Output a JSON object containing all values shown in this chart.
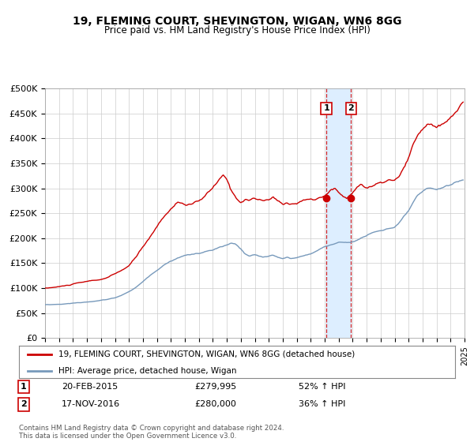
{
  "title": "19, FLEMING COURT, SHEVINGTON, WIGAN, WN6 8GG",
  "subtitle": "Price paid vs. HM Land Registry's House Price Index (HPI)",
  "x_start_year": 1995,
  "x_end_year": 2025,
  "y_ticks": [
    0,
    50000,
    100000,
    150000,
    200000,
    250000,
    300000,
    350000,
    400000,
    450000,
    500000
  ],
  "y_tick_labels": [
    "£0",
    "£50K",
    "£100K",
    "£150K",
    "£200K",
    "£250K",
    "£300K",
    "£350K",
    "£400K",
    "£450K",
    "£500K"
  ],
  "sale1_date": 2015.12,
  "sale1_price": 279995,
  "sale1_label": "1",
  "sale1_date_str": "20-FEB-2015",
  "sale1_price_str": "£279,995",
  "sale1_hpi_str": "52% ↑ HPI",
  "sale2_date": 2016.88,
  "sale2_price": 280000,
  "sale2_label": "2",
  "sale2_date_str": "17-NOV-2016",
  "sale2_price_str": "£280,000",
  "sale2_hpi_str": "36% ↑ HPI",
  "legend_line1": "19, FLEMING COURT, SHEVINGTON, WIGAN, WN6 8GG (detached house)",
  "legend_line2": "HPI: Average price, detached house, Wigan",
  "footer": "Contains HM Land Registry data © Crown copyright and database right 2024.\nThis data is licensed under the Open Government Licence v3.0.",
  "red_line_color": "#cc0000",
  "blue_line_color": "#7799bb",
  "background_color": "#ffffff",
  "shading_color": "#ddeeff",
  "red_waypoints": [
    [
      1995.0,
      100000
    ],
    [
      1995.5,
      101500
    ],
    [
      1996.0,
      103000
    ],
    [
      1996.5,
      105000
    ],
    [
      1997.0,
      108000
    ],
    [
      1997.5,
      110000
    ],
    [
      1998.0,
      112000
    ],
    [
      1998.5,
      114000
    ],
    [
      1999.0,
      116000
    ],
    [
      1999.5,
      120000
    ],
    [
      2000.0,
      126000
    ],
    [
      2000.5,
      133000
    ],
    [
      2001.0,
      142000
    ],
    [
      2001.5,
      158000
    ],
    [
      2002.0,
      178000
    ],
    [
      2002.5,
      198000
    ],
    [
      2003.0,
      218000
    ],
    [
      2003.5,
      240000
    ],
    [
      2004.0,
      255000
    ],
    [
      2004.5,
      268000
    ],
    [
      2005.0,
      265000
    ],
    [
      2005.5,
      262000
    ],
    [
      2006.0,
      268000
    ],
    [
      2006.5,
      278000
    ],
    [
      2007.0,
      292000
    ],
    [
      2007.5,
      308000
    ],
    [
      2007.75,
      313000
    ],
    [
      2008.0,
      305000
    ],
    [
      2008.3,
      285000
    ],
    [
      2008.6,
      272000
    ],
    [
      2009.0,
      263000
    ],
    [
      2009.3,
      270000
    ],
    [
      2009.6,
      268000
    ],
    [
      2010.0,
      272000
    ],
    [
      2010.3,
      268000
    ],
    [
      2010.6,
      265000
    ],
    [
      2011.0,
      267000
    ],
    [
      2011.3,
      272000
    ],
    [
      2011.6,
      265000
    ],
    [
      2012.0,
      258000
    ],
    [
      2012.3,
      262000
    ],
    [
      2012.6,
      260000
    ],
    [
      2013.0,
      262000
    ],
    [
      2013.3,
      265000
    ],
    [
      2013.6,
      268000
    ],
    [
      2014.0,
      270000
    ],
    [
      2014.3,
      268000
    ],
    [
      2014.6,
      272000
    ],
    [
      2014.9,
      275000
    ],
    [
      2015.12,
      279995
    ],
    [
      2015.4,
      292000
    ],
    [
      2015.7,
      295000
    ],
    [
      2016.0,
      287000
    ],
    [
      2016.3,
      278000
    ],
    [
      2016.6,
      274000
    ],
    [
      2016.88,
      280000
    ],
    [
      2017.0,
      285000
    ],
    [
      2017.3,
      295000
    ],
    [
      2017.6,
      302000
    ],
    [
      2018.0,
      295000
    ],
    [
      2018.3,
      298000
    ],
    [
      2018.6,
      300000
    ],
    [
      2019.0,
      302000
    ],
    [
      2019.3,
      305000
    ],
    [
      2019.6,
      308000
    ],
    [
      2020.0,
      305000
    ],
    [
      2020.3,
      312000
    ],
    [
      2020.6,
      325000
    ],
    [
      2021.0,
      345000
    ],
    [
      2021.3,
      368000
    ],
    [
      2021.6,
      385000
    ],
    [
      2022.0,
      398000
    ],
    [
      2022.3,
      408000
    ],
    [
      2022.6,
      412000
    ],
    [
      2023.0,
      402000
    ],
    [
      2023.3,
      405000
    ],
    [
      2023.6,
      408000
    ],
    [
      2024.0,
      415000
    ],
    [
      2024.3,
      425000
    ],
    [
      2024.6,
      438000
    ],
    [
      2024.9,
      445000
    ]
  ],
  "blue_waypoints": [
    [
      1995.0,
      67000
    ],
    [
      1995.5,
      67500
    ],
    [
      1996.0,
      68000
    ],
    [
      1996.5,
      69000
    ],
    [
      1997.0,
      70500
    ],
    [
      1997.5,
      71500
    ],
    [
      1998.0,
      73000
    ],
    [
      1998.5,
      74500
    ],
    [
      1999.0,
      76000
    ],
    [
      1999.5,
      78000
    ],
    [
      2000.0,
      81000
    ],
    [
      2000.5,
      86000
    ],
    [
      2001.0,
      93000
    ],
    [
      2001.5,
      102000
    ],
    [
      2002.0,
      113000
    ],
    [
      2002.5,
      125000
    ],
    [
      2003.0,
      137000
    ],
    [
      2003.5,
      148000
    ],
    [
      2004.0,
      157000
    ],
    [
      2004.5,
      163000
    ],
    [
      2005.0,
      168000
    ],
    [
      2005.5,
      170000
    ],
    [
      2006.0,
      172000
    ],
    [
      2006.5,
      175000
    ],
    [
      2007.0,
      178000
    ],
    [
      2007.5,
      183000
    ],
    [
      2008.0,
      187000
    ],
    [
      2008.3,
      190000
    ],
    [
      2008.6,
      188000
    ],
    [
      2009.0,
      178000
    ],
    [
      2009.3,
      168000
    ],
    [
      2009.6,
      163000
    ],
    [
      2010.0,
      165000
    ],
    [
      2010.3,
      162000
    ],
    [
      2010.6,
      160000
    ],
    [
      2011.0,
      162000
    ],
    [
      2011.3,
      165000
    ],
    [
      2011.6,
      162000
    ],
    [
      2012.0,
      158000
    ],
    [
      2012.3,
      160000
    ],
    [
      2012.6,
      158000
    ],
    [
      2013.0,
      160000
    ],
    [
      2013.3,
      162000
    ],
    [
      2013.6,
      165000
    ],
    [
      2014.0,
      168000
    ],
    [
      2014.3,
      172000
    ],
    [
      2014.6,
      177000
    ],
    [
      2015.0,
      183000
    ],
    [
      2015.3,
      186000
    ],
    [
      2015.6,
      188000
    ],
    [
      2016.0,
      190000
    ],
    [
      2016.3,
      191000
    ],
    [
      2016.6,
      191000
    ],
    [
      2017.0,
      193000
    ],
    [
      2017.3,
      196000
    ],
    [
      2017.6,
      200000
    ],
    [
      2018.0,
      205000
    ],
    [
      2018.3,
      210000
    ],
    [
      2018.6,
      213000
    ],
    [
      2019.0,
      216000
    ],
    [
      2019.3,
      218000
    ],
    [
      2019.6,
      220000
    ],
    [
      2020.0,
      222000
    ],
    [
      2020.3,
      228000
    ],
    [
      2020.6,
      238000
    ],
    [
      2021.0,
      252000
    ],
    [
      2021.3,
      265000
    ],
    [
      2021.6,
      278000
    ],
    [
      2022.0,
      285000
    ],
    [
      2022.3,
      290000
    ],
    [
      2022.6,
      292000
    ],
    [
      2023.0,
      290000
    ],
    [
      2023.3,
      292000
    ],
    [
      2023.6,
      295000
    ],
    [
      2024.0,
      298000
    ],
    [
      2024.3,
      302000
    ],
    [
      2024.6,
      305000
    ],
    [
      2024.9,
      308000
    ]
  ]
}
